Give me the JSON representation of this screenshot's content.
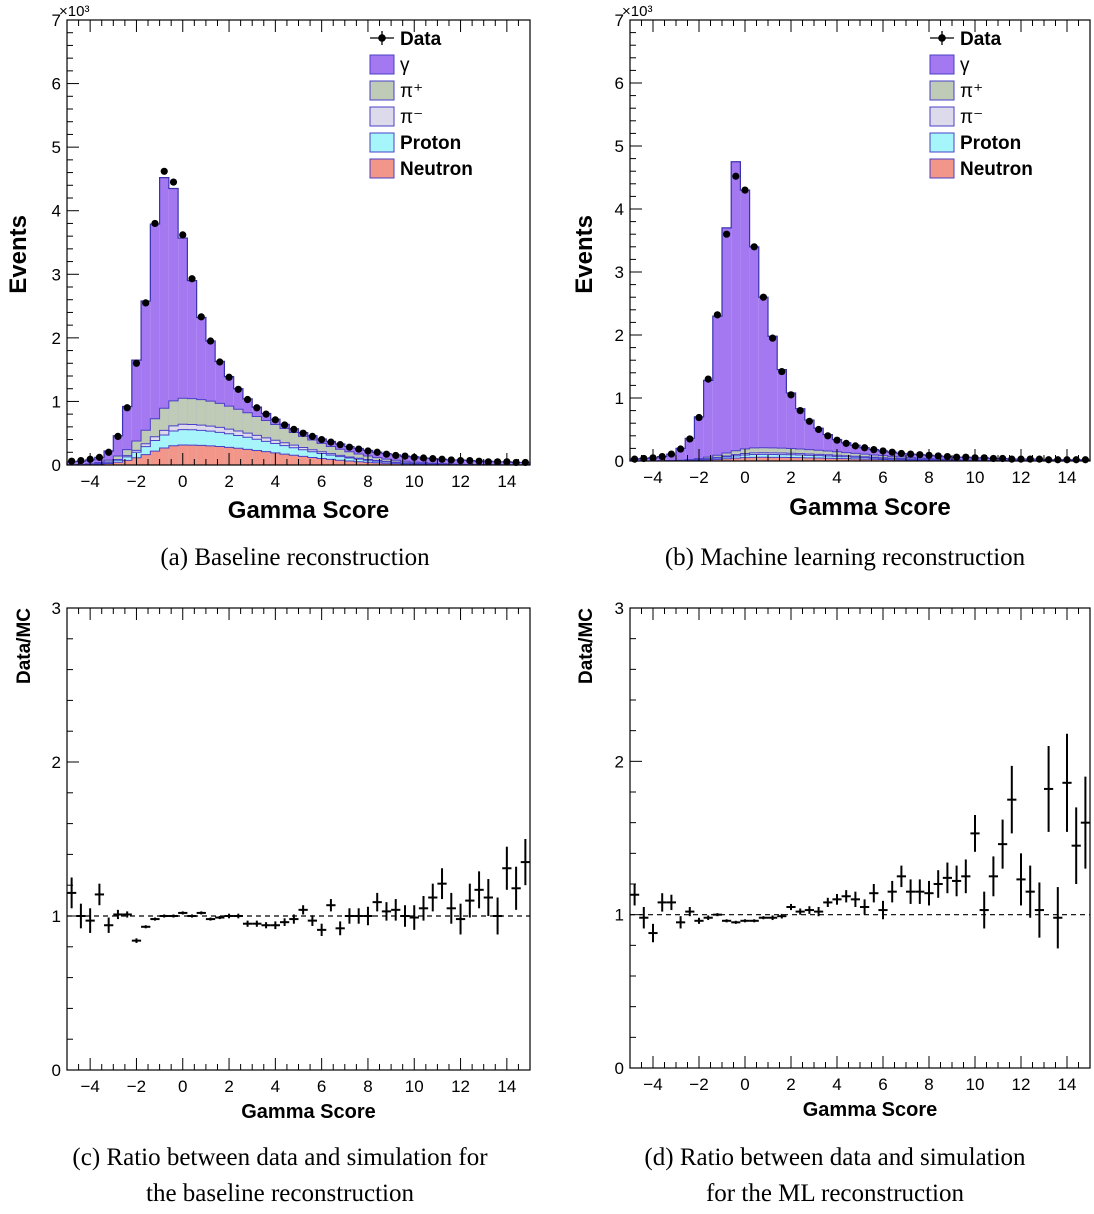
{
  "chart_data": [
    {
      "id": "a",
      "type": "bar",
      "caption": "(a) Baseline reconstruction",
      "xlabel": "Gamma Score",
      "ylabel": "Events",
      "y_multiplier": "×10³",
      "xlim": [
        -5,
        15
      ],
      "ylim": [
        0,
        7
      ],
      "x_ticks": [
        -4,
        -2,
        0,
        2,
        4,
        6,
        8,
        10,
        12,
        14
      ],
      "y_ticks": [
        0,
        1,
        2,
        3,
        4,
        5,
        6,
        7
      ],
      "bin_width": 0.4,
      "legend": [
        {
          "label": "Data",
          "kind": "marker",
          "color": "#000000"
        },
        {
          "label": "γ",
          "kind": "fill",
          "color": "#a478f0"
        },
        {
          "label": "π⁺",
          "kind": "fill",
          "color": "#bfcab7"
        },
        {
          "label": "π⁻",
          "kind": "fill",
          "color": "#dcdaeb"
        },
        {
          "label": "Proton",
          "kind": "fill",
          "color": "#a6f5fa"
        },
        {
          "label": "Neutron",
          "kind": "fill",
          "color": "#f2968a"
        }
      ],
      "data": [
        0.06,
        0.07,
        0.09,
        0.12,
        0.2,
        0.45,
        0.9,
        1.6,
        2.55,
        3.8,
        4.62,
        4.45,
        3.62,
        2.93,
        2.33,
        1.95,
        1.62,
        1.38,
        1.19,
        1.03,
        0.9,
        0.8,
        0.71,
        0.63,
        0.56,
        0.5,
        0.45,
        0.4,
        0.36,
        0.32,
        0.28,
        0.25,
        0.22,
        0.2,
        0.17,
        0.15,
        0.14,
        0.12,
        0.11,
        0.1,
        0.09,
        0.08,
        0.07,
        0.07,
        0.06,
        0.05,
        0.05,
        0.05,
        0.04,
        0.04
      ],
      "stack_totals": [
        0.05,
        0.06,
        0.08,
        0.12,
        0.22,
        0.46,
        0.92,
        1.65,
        2.58,
        3.79,
        4.52,
        4.35,
        3.57,
        2.9,
        2.32,
        1.95,
        1.63,
        1.39,
        1.2,
        1.04,
        0.91,
        0.81,
        0.72,
        0.64,
        0.57,
        0.51,
        0.46,
        0.41,
        0.37,
        0.33,
        0.29,
        0.26,
        0.23,
        0.2,
        0.18,
        0.16,
        0.14,
        0.13,
        0.11,
        0.1,
        0.09,
        0.08,
        0.08,
        0.07,
        0.06,
        0.06,
        0.05,
        0.05,
        0.04,
        0.04
      ],
      "stack_peak": 1.05,
      "stack_peak_x": 0.0,
      "stack_fractions": {
        "neutron": 0.3,
        "proton": 0.53,
        "pim": 0.61,
        "pip": 1.0
      }
    },
    {
      "id": "b",
      "type": "bar",
      "caption": "(b) Machine learning reconstruction",
      "xlabel": "Gamma Score",
      "ylabel": "Events",
      "y_multiplier": "×10³",
      "xlim": [
        -5,
        15
      ],
      "ylim": [
        0,
        7
      ],
      "x_ticks": [
        -4,
        -2,
        0,
        2,
        4,
        6,
        8,
        10,
        12,
        14
      ],
      "y_ticks": [
        0,
        1,
        2,
        3,
        4,
        5,
        6,
        7
      ],
      "bin_width": 0.4,
      "legend": [
        {
          "label": "Data",
          "kind": "marker",
          "color": "#000000"
        },
        {
          "label": "γ",
          "kind": "fill",
          "color": "#a478f0"
        },
        {
          "label": "π⁺",
          "kind": "fill",
          "color": "#bfcab7"
        },
        {
          "label": "π⁻",
          "kind": "fill",
          "color": "#dcdaeb"
        },
        {
          "label": "Proton",
          "kind": "fill",
          "color": "#a6f5fa"
        },
        {
          "label": "Neutron",
          "kind": "fill",
          "color": "#f2968a"
        }
      ],
      "data": [
        0.03,
        0.04,
        0.05,
        0.07,
        0.11,
        0.19,
        0.35,
        0.69,
        1.3,
        2.32,
        3.6,
        4.52,
        4.3,
        3.4,
        2.6,
        1.95,
        1.42,
        1.05,
        0.8,
        0.63,
        0.5,
        0.4,
        0.33,
        0.28,
        0.24,
        0.21,
        0.18,
        0.16,
        0.14,
        0.12,
        0.11,
        0.1,
        0.09,
        0.08,
        0.07,
        0.06,
        0.06,
        0.05,
        0.05,
        0.04,
        0.04,
        0.03,
        0.03,
        0.03,
        0.03,
        0.02,
        0.02,
        0.02,
        0.02,
        0.02
      ],
      "stack_totals": [
        0.03,
        0.04,
        0.05,
        0.07,
        0.11,
        0.2,
        0.36,
        0.7,
        1.28,
        2.3,
        3.7,
        4.75,
        4.3,
        3.4,
        2.6,
        1.98,
        1.45,
        1.08,
        0.83,
        0.65,
        0.52,
        0.42,
        0.34,
        0.29,
        0.25,
        0.21,
        0.18,
        0.16,
        0.14,
        0.12,
        0.11,
        0.1,
        0.09,
        0.08,
        0.07,
        0.06,
        0.06,
        0.05,
        0.05,
        0.04,
        0.04,
        0.03,
        0.03,
        0.03,
        0.03,
        0.02,
        0.02,
        0.02,
        0.02,
        0.02
      ],
      "stack_peak": 0.21,
      "stack_peak_x": 0.6,
      "stack_fractions": {
        "neutron": 0.28,
        "proton": 0.5,
        "pim": 0.62,
        "pip": 1.0
      }
    },
    {
      "id": "c",
      "type": "scatter",
      "caption_lines": [
        "(c) Ratio between data and simulation for",
        "the baseline reconstruction"
      ],
      "xlabel": "Gamma Score",
      "ylabel": "Data/MC",
      "xlim": [
        -5,
        15
      ],
      "ylim": [
        0,
        3
      ],
      "x_ticks": [
        -4,
        -2,
        0,
        2,
        4,
        6,
        8,
        10,
        12,
        14
      ],
      "y_ticks": [
        0,
        1,
        2,
        3
      ],
      "reference_line": 1,
      "bin_width": 0.4,
      "values": [
        1.15,
        1.0,
        0.97,
        1.14,
        0.94,
        1.01,
        1.01,
        0.84,
        0.93,
        0.98,
        1.0,
        1.0,
        1.02,
        1.0,
        1.02,
        0.98,
        0.99,
        1.0,
        1.0,
        0.95,
        0.95,
        0.94,
        0.94,
        0.96,
        0.98,
        1.04,
        0.97,
        0.91,
        1.07,
        0.92,
        1.0,
        1.0,
        1.0,
        1.09,
        1.03,
        1.04,
        1.0,
        0.99,
        1.05,
        1.12,
        1.21,
        1.05,
        0.98,
        1.1,
        1.17,
        1.12,
        1.0,
        1.31,
        1.18,
        1.35
      ],
      "errors": [
        0.1,
        0.08,
        0.08,
        0.07,
        0.05,
        0.03,
        0.02,
        0.015,
        0.01,
        0.01,
        0.01,
        0.01,
        0.01,
        0.01,
        0.01,
        0.01,
        0.01,
        0.015,
        0.015,
        0.02,
        0.02,
        0.02,
        0.025,
        0.025,
        0.03,
        0.03,
        0.035,
        0.04,
        0.04,
        0.045,
        0.05,
        0.05,
        0.06,
        0.06,
        0.06,
        0.07,
        0.07,
        0.08,
        0.08,
        0.09,
        0.1,
        0.1,
        0.1,
        0.11,
        0.12,
        0.12,
        0.12,
        0.14,
        0.14,
        0.15
      ]
    },
    {
      "id": "d",
      "type": "scatter",
      "caption_lines": [
        "(d) Ratio between data and simulation",
        "for the ML reconstruction"
      ],
      "xlabel": "Gamma Score",
      "ylabel": "Data/MC",
      "xlim": [
        -5,
        15
      ],
      "ylim": [
        0,
        3
      ],
      "x_ticks": [
        -4,
        -2,
        0,
        2,
        4,
        6,
        8,
        10,
        12,
        14
      ],
      "y_ticks": [
        0,
        1,
        2,
        3
      ],
      "reference_line": 1,
      "bin_width": 0.4,
      "values": [
        1.13,
        0.98,
        0.88,
        1.08,
        1.08,
        0.95,
        1.02,
        0.96,
        0.98,
        1.0,
        0.96,
        0.95,
        0.96,
        0.96,
        0.98,
        0.98,
        0.99,
        1.05,
        1.02,
        1.03,
        1.02,
        1.08,
        1.1,
        1.12,
        1.1,
        1.05,
        1.14,
        1.03,
        1.15,
        1.25,
        1.15,
        1.15,
        1.14,
        1.2,
        1.24,
        1.22,
        1.25,
        1.53,
        1.03,
        1.25,
        1.46,
        1.75,
        1.23,
        1.15,
        1.03,
        1.82,
        0.98,
        1.86,
        1.45,
        1.6
      ],
      "errors": [
        0.07,
        0.07,
        0.06,
        0.06,
        0.05,
        0.04,
        0.03,
        0.02,
        0.015,
        0.01,
        0.01,
        0.01,
        0.01,
        0.01,
        0.01,
        0.015,
        0.015,
        0.02,
        0.02,
        0.025,
        0.03,
        0.03,
        0.035,
        0.04,
        0.05,
        0.05,
        0.06,
        0.06,
        0.07,
        0.07,
        0.08,
        0.08,
        0.08,
        0.09,
        0.1,
        0.1,
        0.11,
        0.12,
        0.12,
        0.13,
        0.16,
        0.22,
        0.17,
        0.17,
        0.18,
        0.28,
        0.2,
        0.32,
        0.25,
        0.3
      ]
    }
  ]
}
